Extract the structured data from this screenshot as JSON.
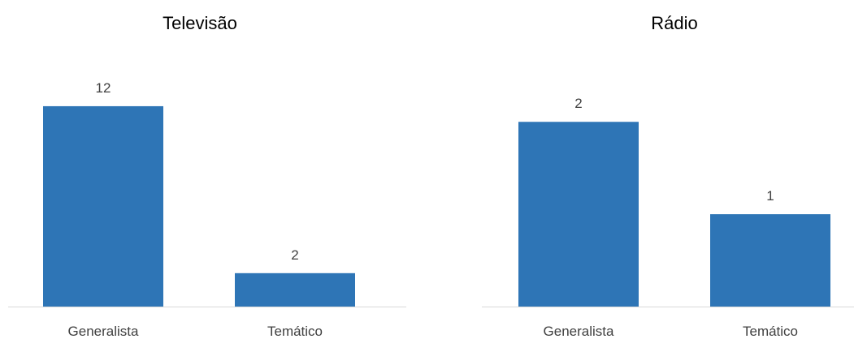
{
  "chart_data": [
    {
      "type": "bar",
      "title": "Televisão",
      "categories": [
        "Generalista",
        "Temático"
      ],
      "values": [
        12,
        2
      ],
      "data_labels": [
        "12",
        "2"
      ],
      "xlabel": "",
      "ylabel": "",
      "ylim": [
        0,
        13.6
      ],
      "grid": false,
      "legend": "none",
      "color": "#2E75B6"
    },
    {
      "type": "bar",
      "title": "Rádio",
      "categories": [
        "Generalista",
        "Temático"
      ],
      "values": [
        2,
        1
      ],
      "data_labels": [
        "2",
        "1"
      ],
      "xlabel": "",
      "ylabel": "",
      "ylim": [
        0,
        2.45
      ],
      "grid": false,
      "legend": "none",
      "color": "#2E75B6"
    }
  ]
}
